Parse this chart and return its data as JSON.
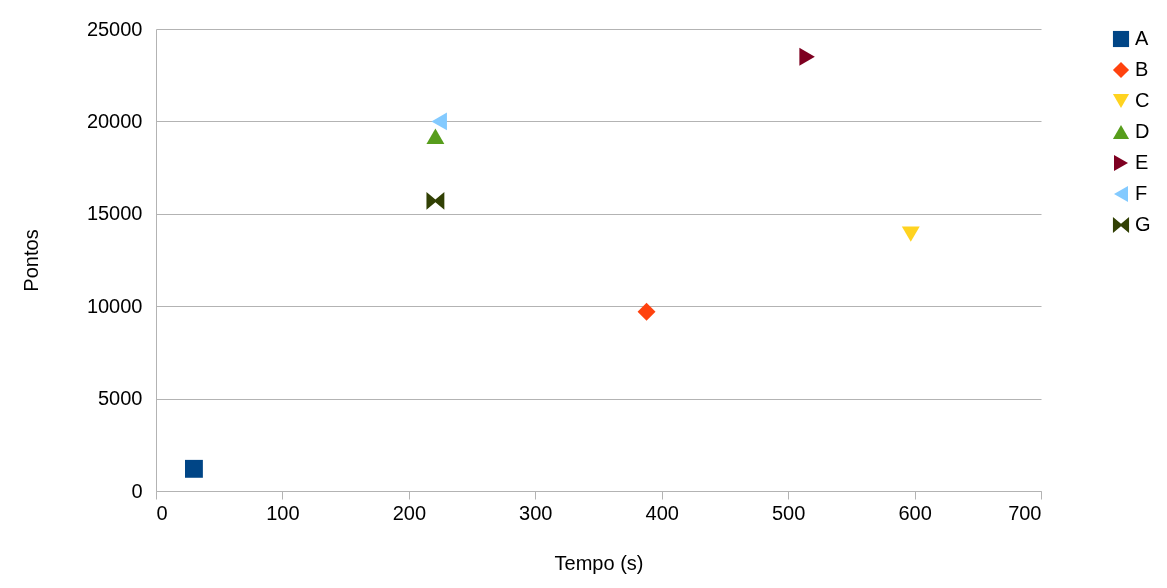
{
  "chart_data": {
    "type": "scatter",
    "xlabel": "Tempo (s)",
    "ylabel": "Pontos",
    "xlim": [
      0,
      700
    ],
    "xticks": [
      0,
      100,
      200,
      300,
      400,
      500,
      600,
      700
    ],
    "ylim": [
      0,
      25000
    ],
    "yticks": [
      0,
      5000,
      10000,
      15000,
      20000,
      25000
    ],
    "grid": "y",
    "legend": "right",
    "series": [
      {
        "name": "A",
        "color": "#004586",
        "marker": "square",
        "x": [
          30
        ],
        "values": [
          1200
        ]
      },
      {
        "name": "B",
        "color": "#ff420e",
        "marker": "diamond",
        "x": [
          388
        ],
        "values": [
          9700
        ]
      },
      {
        "name": "C",
        "color": "#ffd320",
        "marker": "triangle-down",
        "x": [
          597
        ],
        "values": [
          13900
        ]
      },
      {
        "name": "D",
        "color": "#579d1c",
        "marker": "triangle-up",
        "x": [
          221
        ],
        "values": [
          19200
        ]
      },
      {
        "name": "E",
        "color": "#7e0021",
        "marker": "triangle-right",
        "x": [
          515
        ],
        "values": [
          23500
        ]
      },
      {
        "name": "F",
        "color": "#83caff",
        "marker": "triangle-left",
        "x": [
          224
        ],
        "values": [
          20000
        ]
      },
      {
        "name": "G",
        "color": "#314004",
        "marker": "cross",
        "x": [
          221
        ],
        "values": [
          15700
        ]
      }
    ]
  }
}
